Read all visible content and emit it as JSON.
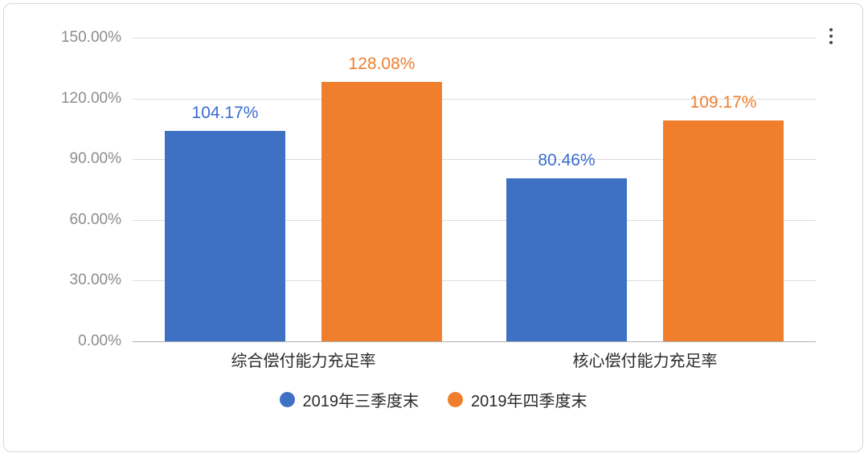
{
  "card": {
    "more_options_icon": "kebab-menu-icon"
  },
  "chart_data": {
    "type": "bar",
    "title": "",
    "categories": [
      "综合偿付能力充足率",
      "核心偿付能力充足率"
    ],
    "series": [
      {
        "name": "2019年三季度末",
        "color": "#3e71c4",
        "label_color": "#3a6bd0",
        "values": [
          104.17,
          80.46
        ],
        "labels": [
          "104.17%",
          "80.46%"
        ]
      },
      {
        "name": "2019年四季度末",
        "color": "#f07e2c",
        "label_color": "#f07e2c",
        "values": [
          128.08,
          109.17
        ],
        "labels": [
          "128.08%",
          "109.17%"
        ]
      }
    ],
    "y_axis": {
      "min": 0,
      "max": 150,
      "tick_step": 30,
      "tick_labels": [
        "0.00%",
        "30.00%",
        "60.00%",
        "90.00%",
        "120.00%",
        "150.00%"
      ]
    },
    "grid": true,
    "legend_position": "bottom"
  }
}
